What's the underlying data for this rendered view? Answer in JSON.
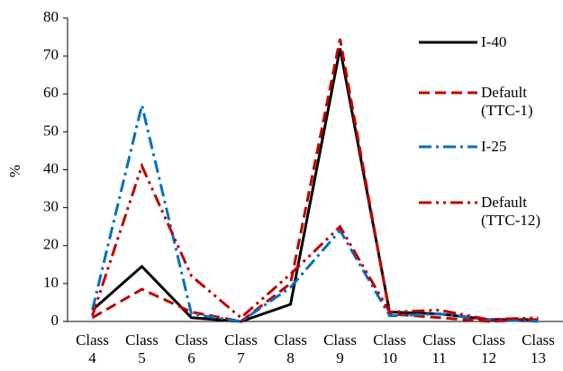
{
  "chart_data": {
    "type": "line",
    "y_label": "%",
    "categories": [
      "Class 4",
      "Class 5",
      "Class 6",
      "Class 7",
      "Class 8",
      "Class 9",
      "Class 10",
      "Class 11",
      "Class 12",
      "Class 13"
    ],
    "series": [
      {
        "name": "I-40",
        "color": "#000000",
        "dash": "solid",
        "values": [
          3,
          14.5,
          1,
          0,
          4.5,
          72,
          2.5,
          2,
          0.5,
          0.5
        ]
      },
      {
        "name": "Default (TTC-1)",
        "color": "#c00000",
        "dash": "dash",
        "values": [
          1,
          8.5,
          2.5,
          0,
          10,
          74.5,
          2,
          1,
          0,
          0.5
        ]
      },
      {
        "name": "I-25",
        "color": "#0070c0",
        "dash": "dashdot",
        "values": [
          3,
          57,
          2,
          0,
          9,
          24,
          1.5,
          2,
          0.5,
          0
        ]
      },
      {
        "name": "Default (TTC-12)",
        "color": "#c00000",
        "dash": "dashdotdot",
        "values": [
          1.5,
          41,
          12,
          1,
          12.5,
          25,
          2.5,
          3,
          0.5,
          1
        ]
      }
    ],
    "ylim": [
      0,
      80
    ],
    "yticks": [
      0,
      10,
      20,
      30,
      40,
      50,
      60,
      70,
      80
    ],
    "legend": "right"
  }
}
